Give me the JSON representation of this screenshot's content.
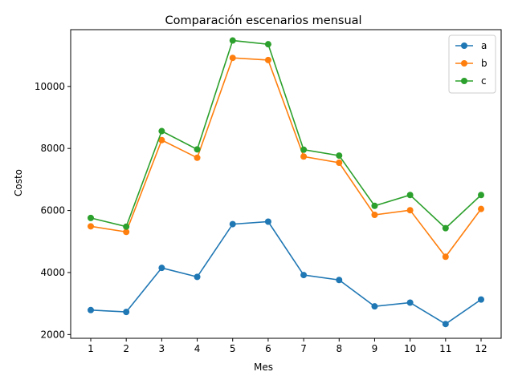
{
  "chart_data": {
    "type": "line",
    "title": "Comparación escenarios mensual",
    "xlabel": "Mes",
    "ylabel": "Costo",
    "categories": [
      1,
      2,
      3,
      4,
      5,
      6,
      7,
      8,
      9,
      10,
      11,
      12
    ],
    "y_ticks": [
      2000,
      4000,
      6000,
      8000,
      10000
    ],
    "ylim": [
      1880,
      11830
    ],
    "grid": false,
    "legend_position": "top-right",
    "marker": "circle",
    "series": [
      {
        "name": "a",
        "color": "#1f77b4",
        "values": [
          2790,
          2730,
          4150,
          3860,
          5560,
          5640,
          3920,
          3760,
          2910,
          3030,
          2340,
          3130
        ]
      },
      {
        "name": "b",
        "color": "#ff7f0e",
        "values": [
          5490,
          5310,
          8270,
          7700,
          10920,
          10850,
          7740,
          7540,
          5860,
          6010,
          4510,
          6050
        ]
      },
      {
        "name": "c",
        "color": "#2ca02c",
        "values": [
          5760,
          5480,
          8560,
          7970,
          11480,
          11360,
          7960,
          7770,
          6150,
          6500,
          5430,
          6500
        ]
      }
    ]
  }
}
